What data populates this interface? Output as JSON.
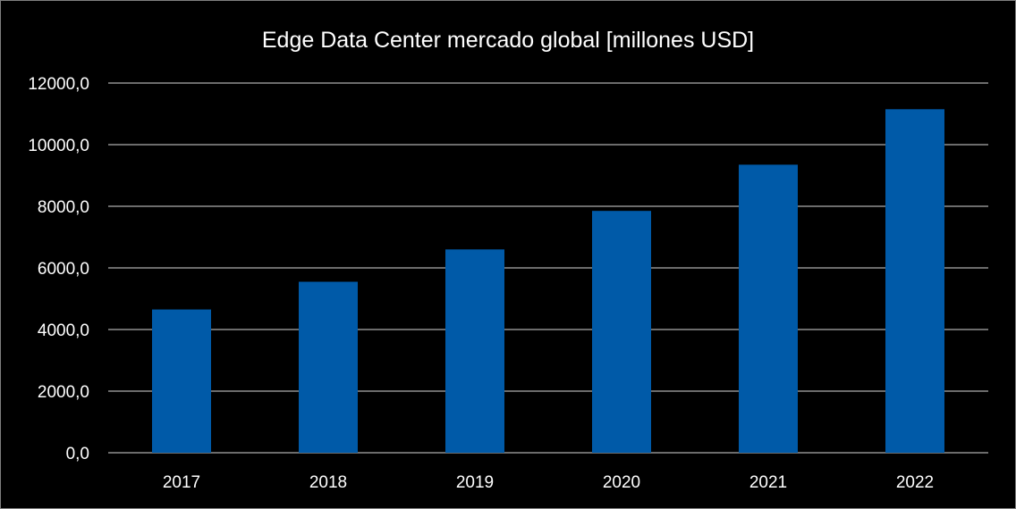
{
  "chart_data": {
    "type": "bar",
    "title": "Edge Data Center mercado global [millones USD]",
    "categories": [
      "2017",
      "2018",
      "2019",
      "2020",
      "2021",
      "2022"
    ],
    "values": [
      4650,
      5550,
      6600,
      7850,
      9350,
      11150
    ],
    "ylim": [
      0,
      12000
    ],
    "yticks": [
      0,
      2000,
      4000,
      6000,
      8000,
      10000,
      12000
    ],
    "ytick_labels": [
      "0,0",
      "2000,0",
      "4000,0",
      "6000,0",
      "8000,0",
      "10000,0",
      "12000,0"
    ],
    "xlabel": "",
    "ylabel": "",
    "grid": true,
    "legend": "none",
    "colors": {
      "bar": "#005aa8",
      "background": "#000000",
      "text": "#ffffff",
      "grid": "#d9d9d9"
    }
  }
}
